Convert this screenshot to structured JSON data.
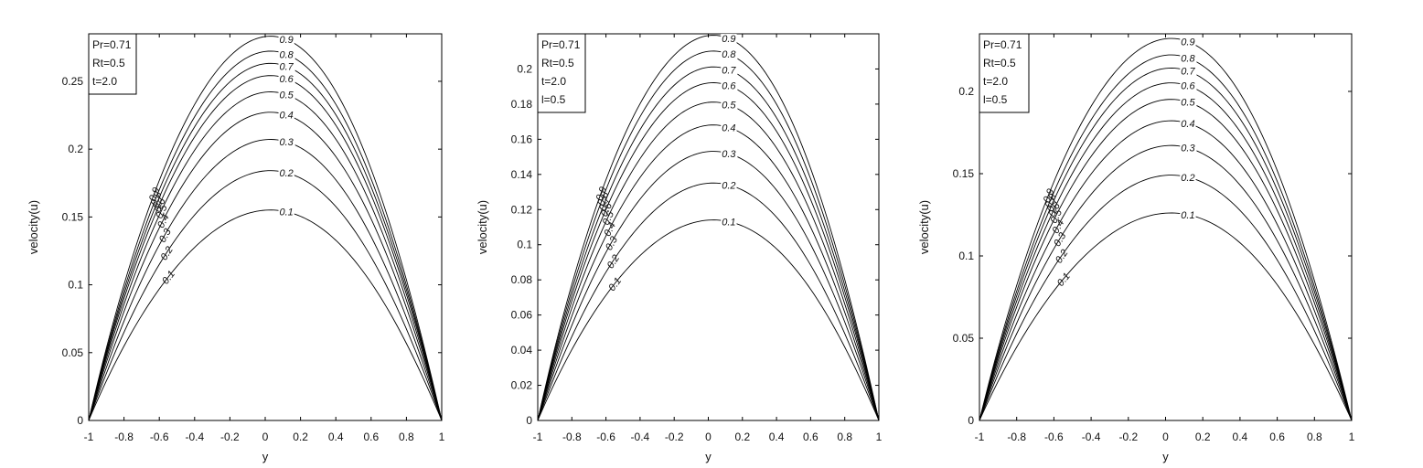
{
  "chart_data": [
    {
      "type": "line",
      "title": "",
      "xlabel": "y",
      "ylabel": "velocity(u)",
      "xlim": [
        -1,
        1
      ],
      "ylim": [
        0,
        0.285
      ],
      "xticks": [
        "-1",
        "-0.8",
        "-0.6",
        "-0.4",
        "-0.2",
        "0",
        "0.2",
        "0.4",
        "0.6",
        "0.8",
        "1"
      ],
      "yticks": [
        {
          "value": 0,
          "label": "0"
        },
        {
          "value": 0.05,
          "label": "0.05"
        },
        {
          "value": 0.1,
          "label": "0.1"
        },
        {
          "value": 0.15,
          "label": "0.15"
        },
        {
          "value": 0.2,
          "label": "0.2"
        },
        {
          "value": 0.25,
          "label": "0.25"
        }
      ],
      "legend": [
        "Pr=0.71",
        "Rt=0.5",
        "t=2.0"
      ],
      "legend_position": "top-left",
      "grid": false,
      "series": [
        {
          "name": "0.1",
          "peak": 0.155
        },
        {
          "name": "0.2",
          "peak": 0.184
        },
        {
          "name": "0.3",
          "peak": 0.207
        },
        {
          "name": "0.4",
          "peak": 0.227
        },
        {
          "name": "0.5",
          "peak": 0.242
        },
        {
          "name": "0.6",
          "peak": 0.254
        },
        {
          "name": "0.7",
          "peak": 0.263
        },
        {
          "name": "0.8",
          "peak": 0.272
        },
        {
          "name": "0.9",
          "peak": 0.283
        }
      ]
    },
    {
      "type": "line",
      "title": "",
      "xlabel": "y",
      "ylabel": "velocity(u)",
      "xlim": [
        -1,
        1
      ],
      "ylim": [
        0,
        0.22
      ],
      "xticks": [
        "-1",
        "-0.8",
        "-0.6",
        "-0.4",
        "-0.2",
        "0",
        "0.2",
        "0.4",
        "0.6",
        "0.8",
        "1"
      ],
      "yticks": [
        {
          "value": 0,
          "label": "0"
        },
        {
          "value": 0.02,
          "label": "0.02"
        },
        {
          "value": 0.04,
          "label": "0.04"
        },
        {
          "value": 0.06,
          "label": "0.06"
        },
        {
          "value": 0.08,
          "label": "0.08"
        },
        {
          "value": 0.1,
          "label": "0.1"
        },
        {
          "value": 0.12,
          "label": "0.12"
        },
        {
          "value": 0.14,
          "label": "0.14"
        },
        {
          "value": 0.16,
          "label": "0.16"
        },
        {
          "value": 0.18,
          "label": "0.18"
        },
        {
          "value": 0.2,
          "label": "0.2"
        }
      ],
      "legend": [
        "Pr=0.71",
        "Rt=0.5",
        "t=2.0",
        "l=0.5"
      ],
      "legend_position": "top-left",
      "grid": false,
      "series": [
        {
          "name": "0.1",
          "peak": 0.114
        },
        {
          "name": "0.2",
          "peak": 0.135
        },
        {
          "name": "0.3",
          "peak": 0.153
        },
        {
          "name": "0.4",
          "peak": 0.168
        },
        {
          "name": "0.5",
          "peak": 0.181
        },
        {
          "name": "0.6",
          "peak": 0.192
        },
        {
          "name": "0.7",
          "peak": 0.201
        },
        {
          "name": "0.8",
          "peak": 0.21
        },
        {
          "name": "0.9",
          "peak": 0.219
        }
      ]
    },
    {
      "type": "line",
      "title": "",
      "xlabel": "y",
      "ylabel": "velocity(u)",
      "xlim": [
        -1,
        1
      ],
      "ylim": [
        0,
        0.235
      ],
      "xticks": [
        "-1",
        "-0.8",
        "-0.6",
        "-0.4",
        "-0.2",
        "0",
        "0.2",
        "0.4",
        "0.6",
        "0.8",
        "1"
      ],
      "yticks": [
        {
          "value": 0,
          "label": "0"
        },
        {
          "value": 0.05,
          "label": "0.05"
        },
        {
          "value": 0.1,
          "label": "0.1"
        },
        {
          "value": 0.15,
          "label": "0.15"
        },
        {
          "value": 0.2,
          "label": "0.2"
        }
      ],
      "legend": [
        "Pr=0.71",
        "Rt=0.5",
        "t=2.0",
        "l=0.5"
      ],
      "legend_position": "top-left",
      "grid": false,
      "series": [
        {
          "name": "0.1",
          "peak": 0.126
        },
        {
          "name": "0.2",
          "peak": 0.149
        },
        {
          "name": "0.3",
          "peak": 0.167
        },
        {
          "name": "0.4",
          "peak": 0.182
        },
        {
          "name": "0.5",
          "peak": 0.195
        },
        {
          "name": "0.6",
          "peak": 0.205
        },
        {
          "name": "0.7",
          "peak": 0.214
        },
        {
          "name": "0.8",
          "peak": 0.222
        },
        {
          "name": "0.9",
          "peak": 0.232
        }
      ]
    }
  ]
}
